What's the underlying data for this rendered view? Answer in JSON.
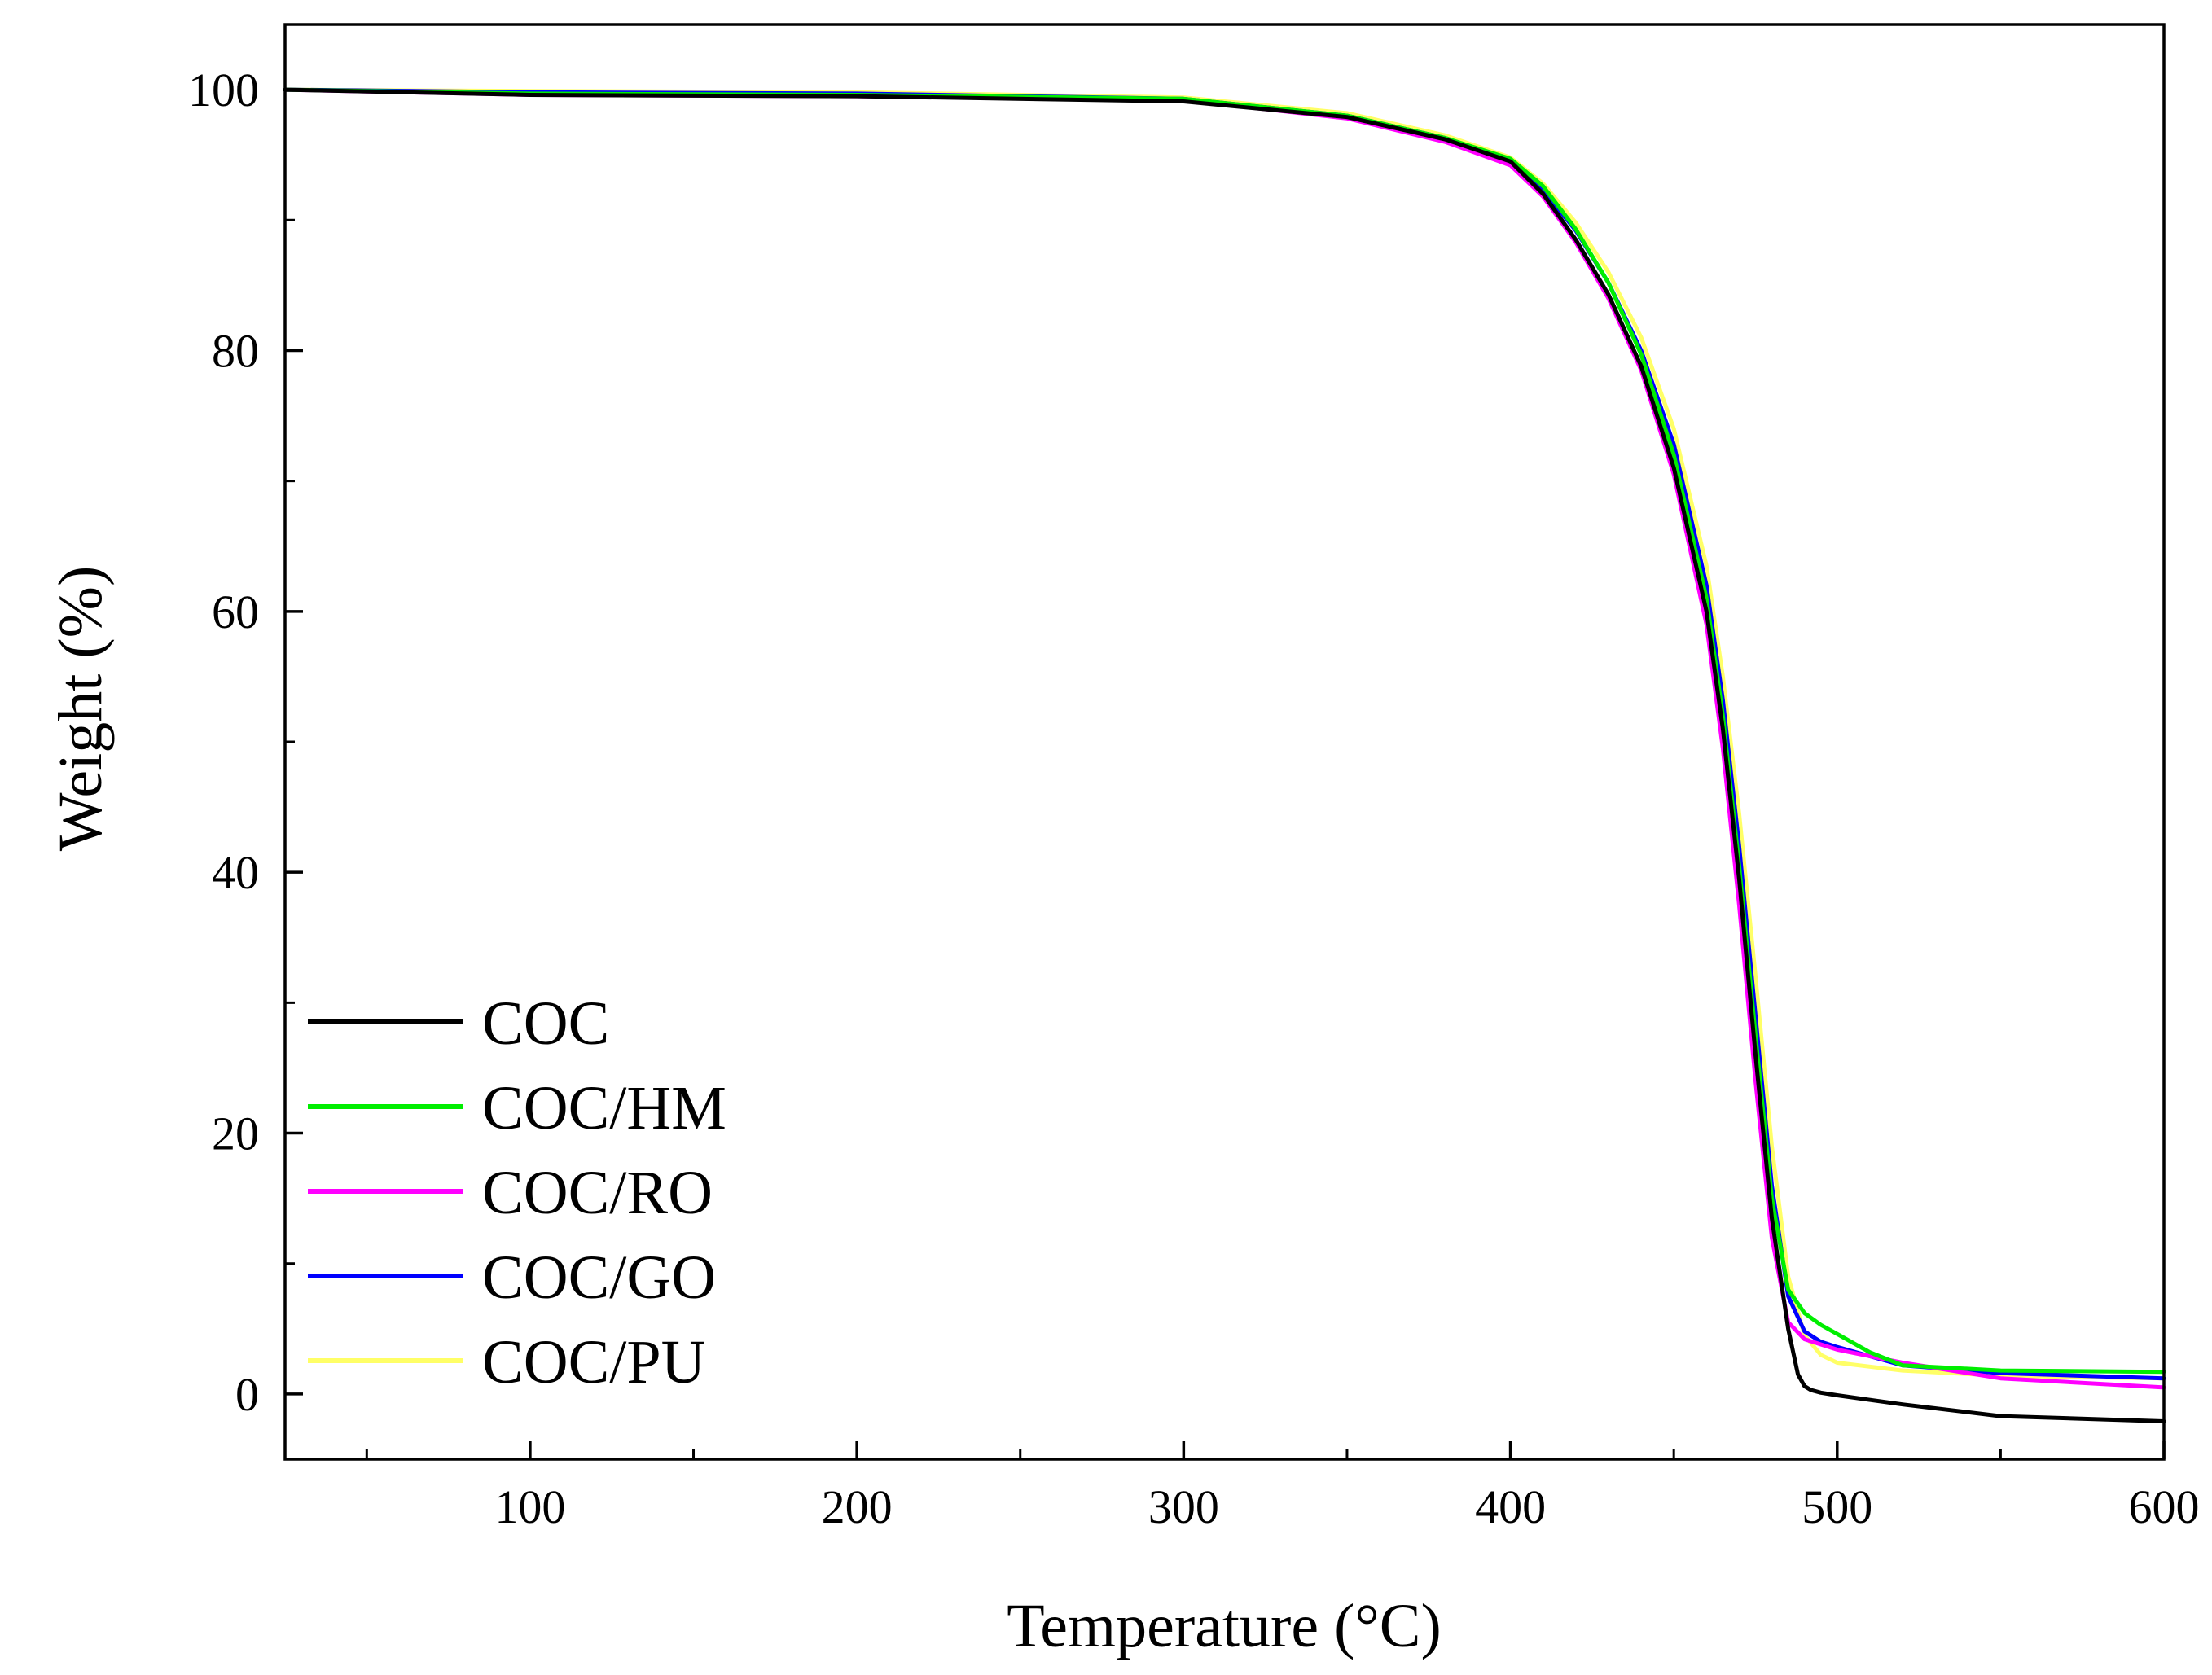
{
  "chart_data": {
    "type": "line",
    "title": "",
    "xlabel": "Temperature (°C)",
    "ylabel": "Weight (%)",
    "xlim": [
      25,
      600
    ],
    "ylim": [
      -5,
      105
    ],
    "xticks": [
      100,
      200,
      300,
      400,
      500,
      600
    ],
    "xtick_labels": [
      "100",
      "200",
      "300",
      "400",
      "500",
      "600"
    ],
    "yticks": [
      0,
      20,
      40,
      60,
      80,
      100
    ],
    "ytick_labels": [
      "0",
      "20",
      "40",
      "60",
      "80",
      "100"
    ],
    "grid": false,
    "legend_position": "lower-left",
    "series": [
      {
        "name": "COC/PU",
        "color": "#ffff66",
        "x": [
          25,
          100,
          200,
          300,
          350,
          380,
          400,
          410,
          420,
          430,
          440,
          450,
          460,
          465,
          470,
          475,
          480,
          485,
          490,
          495,
          500,
          520,
          550,
          600
        ],
        "y": [
          100,
          99.9,
          99.8,
          99.4,
          98.2,
          96.5,
          94.8,
          92.8,
          89.8,
          86.0,
          81.0,
          74.0,
          63.5,
          55.0,
          44.5,
          32.0,
          19.0,
          9.0,
          4.5,
          3.0,
          2.4,
          1.8,
          1.4,
          1.2
        ]
      },
      {
        "name": "COC/GO",
        "color": "#0000ff",
        "x": [
          25,
          100,
          200,
          300,
          350,
          380,
          400,
          410,
          420,
          430,
          440,
          450,
          460,
          465,
          470,
          475,
          480,
          485,
          490,
          495,
          500,
          520,
          550,
          600
        ],
        "y": [
          100,
          99.8,
          99.7,
          99.3,
          98.0,
          96.3,
          94.6,
          92.3,
          89.2,
          85.2,
          80.0,
          72.8,
          62.0,
          53.2,
          42.0,
          29.0,
          16.0,
          7.5,
          4.8,
          4.0,
          3.6,
          2.2,
          1.6,
          1.2
        ]
      },
      {
        "name": "COC/RO",
        "color": "#ff00ff",
        "x": [
          25,
          100,
          200,
          300,
          350,
          380,
          400,
          410,
          420,
          430,
          440,
          450,
          460,
          465,
          470,
          475,
          480,
          485,
          490,
          495,
          500,
          520,
          550,
          600
        ],
        "y": [
          100,
          99.6,
          99.5,
          99.2,
          97.8,
          96.0,
          94.2,
          91.8,
          88.3,
          84.0,
          78.5,
          70.5,
          59.0,
          49.5,
          37.5,
          24.0,
          12.0,
          5.5,
          4.2,
          3.8,
          3.4,
          2.4,
          1.2,
          0.5
        ]
      },
      {
        "name": "COC/HM",
        "color": "#00ee00",
        "x": [
          25,
          100,
          200,
          300,
          350,
          380,
          400,
          410,
          420,
          430,
          440,
          450,
          460,
          465,
          470,
          475,
          480,
          485,
          490,
          495,
          500,
          510,
          520,
          550,
          600
        ],
        "y": [
          100,
          99.7,
          99.6,
          99.3,
          98.0,
          96.3,
          94.7,
          92.6,
          89.3,
          85.2,
          79.7,
          72.0,
          61.0,
          52.0,
          40.5,
          27.5,
          15.0,
          8.0,
          6.2,
          5.3,
          4.6,
          3.2,
          2.2,
          1.8,
          1.7
        ]
      },
      {
        "name": "COC",
        "color": "#000000",
        "x": [
          25,
          100,
          200,
          300,
          350,
          380,
          400,
          410,
          420,
          430,
          440,
          450,
          460,
          465,
          470,
          475,
          480,
          485,
          488,
          490,
          492,
          495,
          500,
          520,
          550,
          600
        ],
        "y": [
          100,
          99.6,
          99.5,
          99.1,
          97.9,
          96.2,
          94.5,
          92.0,
          88.5,
          84.3,
          78.8,
          71.0,
          60.0,
          51.0,
          39.5,
          26.0,
          13.5,
          5.0,
          1.5,
          0.6,
          0.3,
          0.1,
          -0.1,
          -0.8,
          -1.7,
          -2.1
        ]
      }
    ],
    "legend_entries": [
      "COC",
      "COC/HM",
      "COC/RO",
      "COC/GO",
      "COC/PU"
    ],
    "legend_colors": [
      "#000000",
      "#00ee00",
      "#ff00ff",
      "#0000ff",
      "#ffff66"
    ]
  }
}
